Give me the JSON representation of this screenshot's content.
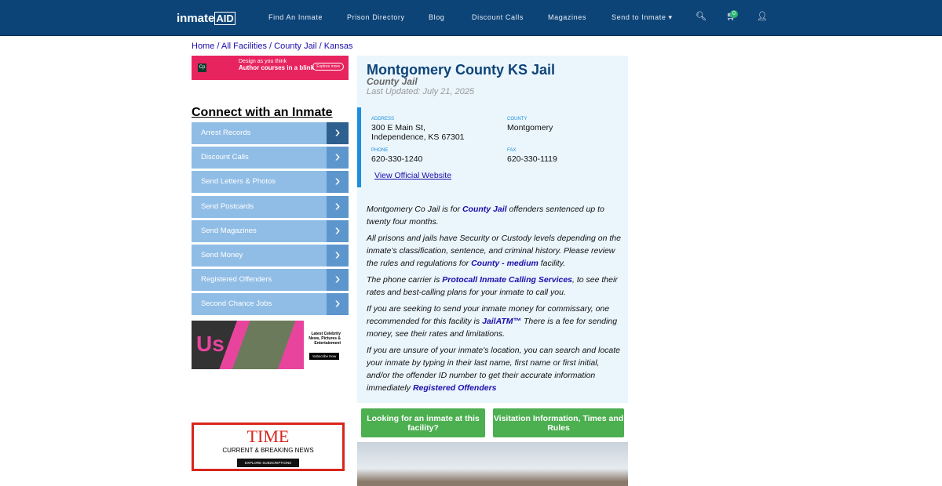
{
  "nav": {
    "logo": "inmate",
    "logo_accent": "AID",
    "items": [
      "Find An Inmate",
      "Prison Directory",
      "Blog",
      "Discount Calls",
      "Magazines",
      "Send to Inmate ▾"
    ],
    "cart_count": "0"
  },
  "breadcrumb": [
    "Home",
    "All Facilities",
    "County Jail",
    "Kansas"
  ],
  "ads": {
    "adobe": {
      "brand": "Adobe Captivate",
      "line1": "Design as you think",
      "line2": "Author courses in a blink",
      "cta": "Explore more"
    },
    "us": {
      "logo": "Us",
      "text": "Latest Celebrity News, Pictures & Entertainment",
      "cta": "Subscribe Now"
    },
    "time": {
      "logo": "TIME",
      "text": "CURRENT & BREAKING NEWS",
      "cta": "EXPLORE SUBSCRIPTIONS"
    }
  },
  "sidebar": {
    "heading": "Connect with an Inmate",
    "items": [
      "Arrest Records",
      "Discount Calls",
      "Send Letters & Photos",
      "Send Postcards",
      "Send Magazines",
      "Send Money",
      "Registered Offenders",
      "Second Chance Jobs"
    ]
  },
  "facility": {
    "title": "Montgomery County KS Jail",
    "type": "County Jail",
    "updated": "Last Updated: July 21, 2025",
    "address_label": "ADDRESS",
    "address1": "300 E Main St,",
    "address2": "Independence, KS 67301",
    "county_label": "COUNTY",
    "county": "Montgomery",
    "phone_label": "PHONE",
    "phone": "620-330-1240",
    "fax_label": "FAX",
    "fax": "620-330-1119",
    "website": "View Official Website"
  },
  "description": {
    "p1a": "Montgomery Co Jail is for ",
    "p1link": "County Jail",
    "p1b": " offenders sentenced up to twenty four months.",
    "p2a": "All prisons and jails have Security or Custody levels depending on the inmate's classification, sentence, and criminal history. Please review the rules and regulations for ",
    "p2link": "County - medium",
    "p2b": " facility.",
    "p3a": "The phone carrier is ",
    "p3link": "Protocall Inmate Calling Services",
    "p3b": ", to see their rates and best-calling plans for your inmate to call you.",
    "p4a": "If you are seeking to send your inmate money for commissary, one recommended for this facility is ",
    "p4link": "JailATM™",
    "p4b": " There is a fee for sending money, see their rates and limitations.",
    "p5a": "If you are unsure of your inmate's location, you can search and locate your inmate by typing in their last name, first name or first initial, and/or the offender ID number to get their accurate information immediately ",
    "p5link": "Registered Offenders"
  },
  "buttons": {
    "find": "Looking for an inmate at this facility?",
    "visit": "Visitation Information, Times and Rules"
  }
}
